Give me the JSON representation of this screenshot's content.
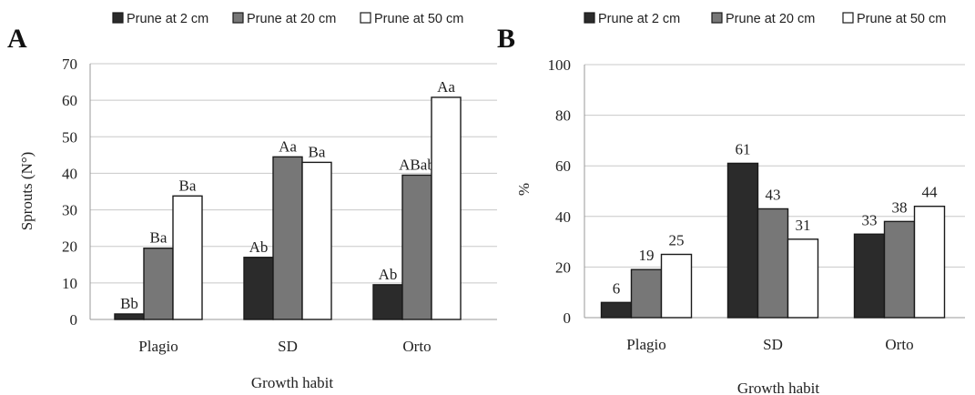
{
  "colors": {
    "series": [
      "#2b2b2b",
      "#777777",
      "#ffffff"
    ],
    "stroke": "#1a1a1a",
    "axis": "#999999",
    "grid": "#c8c8c8"
  },
  "chart_data": [
    {
      "type": "bar",
      "panel_label": "A",
      "categories": [
        "Plagio",
        "SD",
        "Orto"
      ],
      "series": [
        {
          "name": "Prune at 2 cm",
          "values": [
            1.5,
            17,
            9.5
          ]
        },
        {
          "name": "Prune at 20 cm",
          "values": [
            19.5,
            44.5,
            39.5
          ]
        },
        {
          "name": "Prune at 50 cm",
          "values": [
            33.8,
            43,
            60.8
          ]
        }
      ],
      "data_labels": [
        [
          "Bb",
          "Ab",
          "Ab"
        ],
        [
          "Ba",
          "Aa",
          "ABab"
        ],
        [
          "Ba",
          "Ba",
          "Aa"
        ]
      ],
      "xlabel": "Growth habit",
      "ylabel": "Sprouts (N°)",
      "ylim": [
        0,
        70
      ],
      "yticks": [
        0,
        10,
        20,
        30,
        40,
        50,
        60,
        70
      ],
      "grid": true,
      "legend": "top"
    },
    {
      "type": "bar",
      "panel_label": "B",
      "categories": [
        "Plagio",
        "SD",
        "Orto"
      ],
      "series": [
        {
          "name": "Prune at 2 cm",
          "values": [
            6,
            61,
            33
          ]
        },
        {
          "name": "Prune at 20 cm",
          "values": [
            19,
            43,
            38
          ]
        },
        {
          "name": "Prune at 50 cm",
          "values": [
            25,
            31,
            44
          ]
        }
      ],
      "data_labels": [
        [
          "6",
          "61",
          "33"
        ],
        [
          "19",
          "43",
          "38"
        ],
        [
          "25",
          "31",
          "44"
        ]
      ],
      "xlabel": "Growth habit",
      "ylabel": "%",
      "ylim": [
        0,
        100
      ],
      "yticks": [
        0,
        20,
        40,
        60,
        80,
        100
      ],
      "grid": true,
      "legend": "top"
    }
  ]
}
